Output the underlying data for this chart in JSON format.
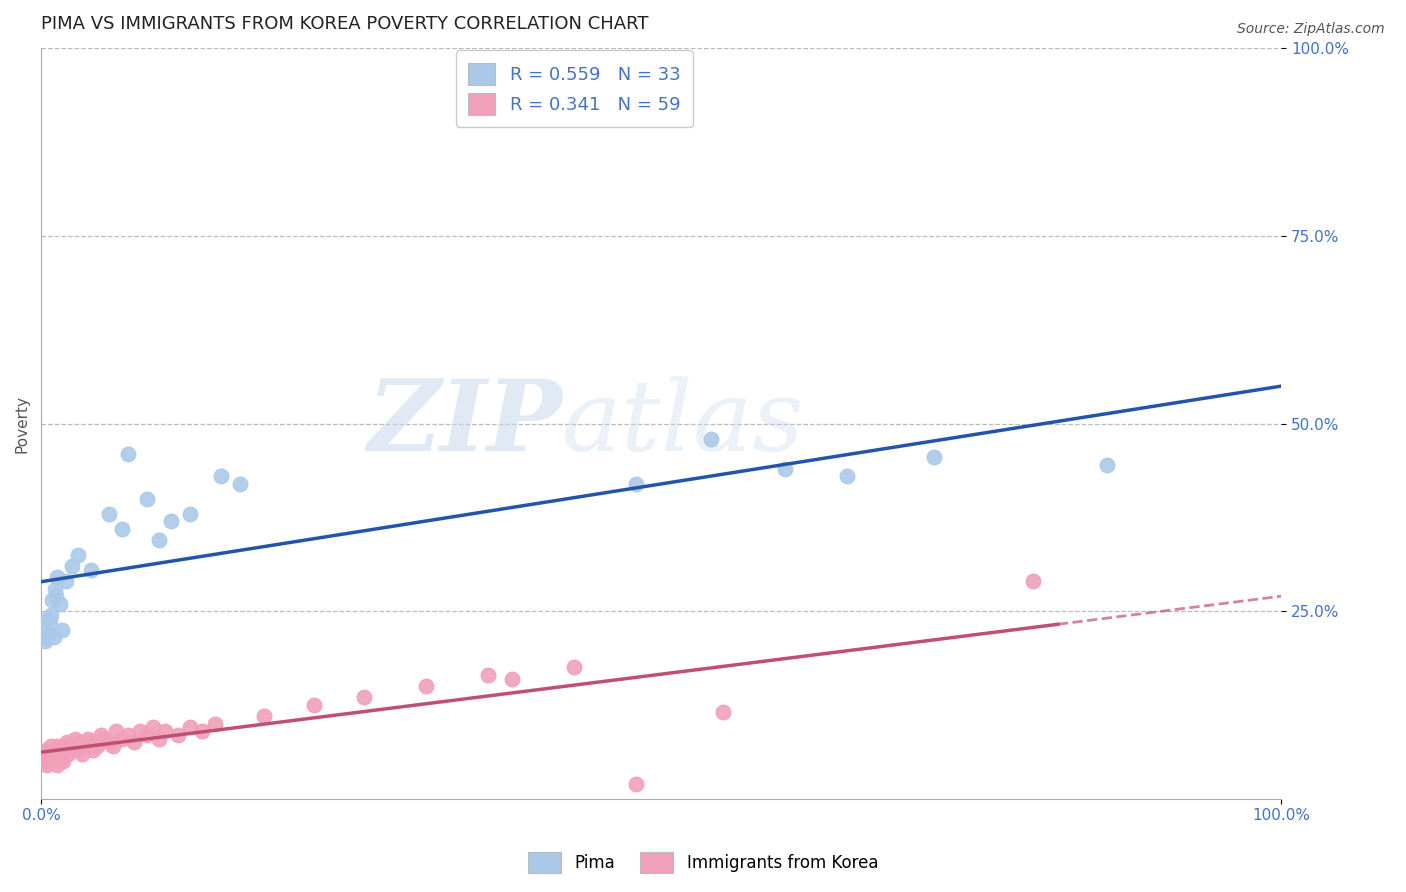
{
  "title": "PIMA VS IMMIGRANTS FROM KOREA POVERTY CORRELATION CHART",
  "source": "Source: ZipAtlas.com",
  "ylabel": "Poverty",
  "watermark_zip": "ZIP",
  "watermark_atlas": "atlas",
  "pima": {
    "label": "Pima",
    "R": 0.559,
    "N": 33,
    "color": "#aac9e8",
    "line_color": "#2255aa",
    "x": [
      0.002,
      0.003,
      0.004,
      0.005,
      0.006,
      0.007,
      0.008,
      0.009,
      0.01,
      0.011,
      0.012,
      0.013,
      0.015,
      0.017,
      0.02,
      0.025,
      0.03,
      0.04,
      0.055,
      0.065,
      0.07,
      0.085,
      0.095,
      0.105,
      0.12,
      0.145,
      0.16,
      0.48,
      0.54,
      0.6,
      0.65,
      0.72,
      0.86
    ],
    "y": [
      0.225,
      0.21,
      0.215,
      0.24,
      0.22,
      0.235,
      0.245,
      0.265,
      0.215,
      0.28,
      0.27,
      0.295,
      0.26,
      0.225,
      0.29,
      0.31,
      0.325,
      0.305,
      0.38,
      0.36,
      0.46,
      0.4,
      0.345,
      0.37,
      0.38,
      0.43,
      0.42,
      0.42,
      0.48,
      0.44,
      0.43,
      0.455,
      0.445
    ]
  },
  "korea": {
    "label": "Immigrants from Korea",
    "R": 0.341,
    "N": 59,
    "color": "#f0a0b8",
    "line_color": "#c05070",
    "x": [
      0.001,
      0.002,
      0.003,
      0.004,
      0.005,
      0.006,
      0.007,
      0.008,
      0.009,
      0.01,
      0.011,
      0.012,
      0.013,
      0.014,
      0.015,
      0.016,
      0.017,
      0.018,
      0.019,
      0.02,
      0.021,
      0.022,
      0.025,
      0.027,
      0.029,
      0.031,
      0.033,
      0.035,
      0.038,
      0.04,
      0.042,
      0.045,
      0.048,
      0.05,
      0.055,
      0.058,
      0.06,
      0.065,
      0.07,
      0.075,
      0.08,
      0.085,
      0.09,
      0.095,
      0.1,
      0.11,
      0.12,
      0.13,
      0.14,
      0.18,
      0.22,
      0.26,
      0.31,
      0.36,
      0.38,
      0.43,
      0.48,
      0.55,
      0.8
    ],
    "y": [
      0.06,
      0.055,
      0.05,
      0.065,
      0.045,
      0.06,
      0.055,
      0.07,
      0.05,
      0.065,
      0.06,
      0.055,
      0.045,
      0.07,
      0.065,
      0.06,
      0.055,
      0.05,
      0.07,
      0.065,
      0.075,
      0.06,
      0.07,
      0.08,
      0.065,
      0.075,
      0.06,
      0.07,
      0.08,
      0.075,
      0.065,
      0.07,
      0.085,
      0.08,
      0.075,
      0.07,
      0.09,
      0.08,
      0.085,
      0.075,
      0.09,
      0.085,
      0.095,
      0.08,
      0.09,
      0.085,
      0.095,
      0.09,
      0.1,
      0.11,
      0.125,
      0.135,
      0.15,
      0.165,
      0.16,
      0.175,
      0.02,
      0.115,
      0.29
    ]
  },
  "xlim": [
    0.0,
    1.0
  ],
  "ylim": [
    0.0,
    1.0
  ],
  "ytick_positions": [
    0.25,
    0.5,
    0.75,
    1.0
  ],
  "ytick_labels": [
    "25.0%",
    "50.0%",
    "75.0%",
    "100.0%"
  ],
  "xtick_positions": [
    0.0,
    1.0
  ],
  "xtick_labels": [
    "0.0%",
    "100.0%"
  ],
  "grid_color": "#bbbbbb",
  "background_color": "#ffffff",
  "title_fontsize": 13,
  "axis_label_fontsize": 11,
  "tick_fontsize": 11,
  "legend_fontsize": 13
}
